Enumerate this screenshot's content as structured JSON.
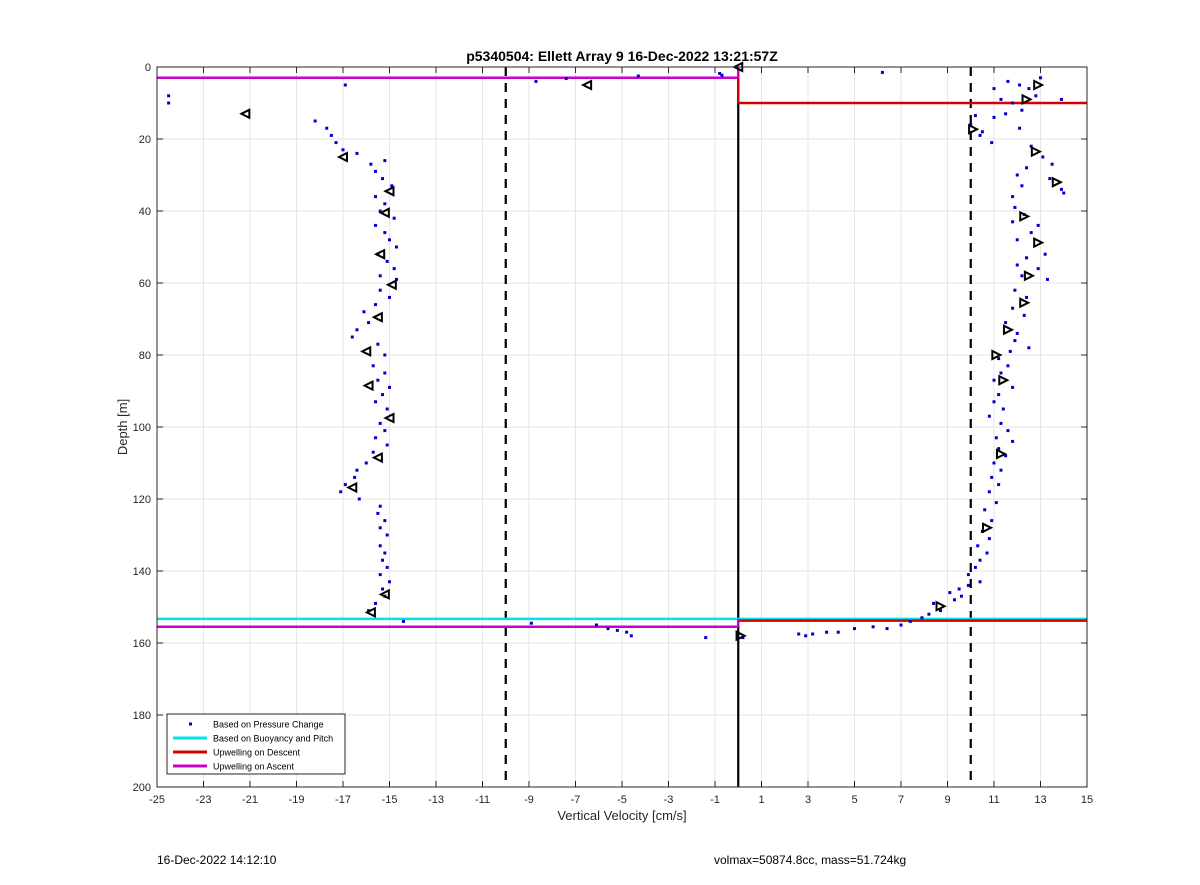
{
  "footer": {
    "timestamp": "16-Dec-2022 14:12:10",
    "volmax_mass": "volmax=50874.8cc, mass=51.724kg"
  },
  "colors": {
    "pressure": "#0000cc",
    "buoyancy": "#00e5e5",
    "descent": "#d40000",
    "ascent": "#cc00cc",
    "grid": "#e6e6e6"
  },
  "chart_data": {
    "type": "scatter",
    "title": "p5340504: Ellett Array 9 16-Dec-2022 13:21:57Z",
    "xlabel": "Vertical Velocity [cm/s]",
    "ylabel": "Depth [m]",
    "xlim": [
      -25,
      15
    ],
    "ylim": [
      0,
      200
    ],
    "y_reversed": true,
    "xticks": [
      -25,
      -23,
      -21,
      -19,
      -17,
      -15,
      -13,
      -11,
      -9,
      -7,
      -5,
      -3,
      -1,
      1,
      3,
      5,
      7,
      9,
      11,
      13,
      15
    ],
    "yticks": [
      0,
      20,
      40,
      60,
      80,
      100,
      120,
      140,
      160,
      180,
      200
    ],
    "grid": true,
    "legend_position": "bottom-left",
    "legend": [
      {
        "label": "Based on Pressure Change",
        "marker": "point",
        "color": "#0000cc"
      },
      {
        "label": "Based on Buoyancy and Pitch",
        "marker": "line",
        "color": "#00e5e5"
      },
      {
        "label": "Upwelling on Descent",
        "marker": "line",
        "color": "#d40000"
      },
      {
        "label": "Upwelling on Ascent",
        "marker": "line",
        "color": "#cc00cc"
      }
    ],
    "reference_lines": [
      {
        "kind": "vertical",
        "x": 0,
        "style": "solid"
      },
      {
        "kind": "vertical",
        "x": -10,
        "style": "dashed"
      },
      {
        "kind": "vertical",
        "x": 10,
        "style": "dashed"
      }
    ],
    "pressure_points": [
      [
        -24.5,
        8
      ],
      [
        -24.5,
        10
      ],
      [
        -16.9,
        5
      ],
      [
        -18.2,
        15
      ],
      [
        -17.7,
        17
      ],
      [
        -17.5,
        19
      ],
      [
        -17.3,
        21
      ],
      [
        -17.0,
        23
      ],
      [
        -16.4,
        24
      ],
      [
        -15.8,
        27
      ],
      [
        -15.2,
        26
      ],
      [
        -15.6,
        29
      ],
      [
        -15.3,
        31
      ],
      [
        -14.9,
        33
      ],
      [
        -15.6,
        36
      ],
      [
        -15.2,
        38
      ],
      [
        -15.4,
        40
      ],
      [
        -14.8,
        42
      ],
      [
        -15.6,
        44
      ],
      [
        -15.2,
        46
      ],
      [
        -15.0,
        48
      ],
      [
        -14.7,
        50
      ],
      [
        -15.5,
        52
      ],
      [
        -15.1,
        54
      ],
      [
        -14.8,
        56
      ],
      [
        -15.4,
        58
      ],
      [
        -14.7,
        59
      ],
      [
        -15.4,
        62
      ],
      [
        -15.0,
        64
      ],
      [
        -15.6,
        66
      ],
      [
        -16.1,
        68
      ],
      [
        -15.9,
        71
      ],
      [
        -16.4,
        73
      ],
      [
        -16.6,
        75
      ],
      [
        -15.5,
        77
      ],
      [
        -15.2,
        80
      ],
      [
        -15.7,
        83
      ],
      [
        -15.2,
        85
      ],
      [
        -15.5,
        87
      ],
      [
        -15.0,
        89
      ],
      [
        -15.3,
        91
      ],
      [
        -15.6,
        93
      ],
      [
        -15.1,
        95
      ],
      [
        -15.4,
        99
      ],
      [
        -15.2,
        101
      ],
      [
        -15.6,
        103
      ],
      [
        -15.1,
        105
      ],
      [
        -15.7,
        107
      ],
      [
        -16.0,
        110
      ],
      [
        -16.4,
        112
      ],
      [
        -16.5,
        114
      ],
      [
        -16.9,
        116
      ],
      [
        -17.1,
        118
      ],
      [
        -16.3,
        120
      ],
      [
        -15.4,
        122
      ],
      [
        -15.5,
        124
      ],
      [
        -15.2,
        126
      ],
      [
        -15.4,
        128
      ],
      [
        -15.1,
        130
      ],
      [
        -15.4,
        133
      ],
      [
        -15.2,
        135
      ],
      [
        -15.3,
        137
      ],
      [
        -15.1,
        139
      ],
      [
        -15.4,
        141
      ],
      [
        -15.0,
        143
      ],
      [
        -15.3,
        145
      ],
      [
        -15.2,
        147
      ],
      [
        -15.6,
        149
      ],
      [
        -15.9,
        151
      ],
      [
        -14.4,
        154
      ],
      [
        -8.9,
        154.5
      ],
      [
        -6.1,
        155
      ],
      [
        -5.6,
        156
      ],
      [
        -5.2,
        156.5
      ],
      [
        -4.8,
        157
      ],
      [
        -4.6,
        158
      ],
      [
        -1.4,
        158.5
      ],
      [
        -8.7,
        4
      ],
      [
        -7.4,
        3.2
      ],
      [
        -4.3,
        2.5
      ],
      [
        -0.8,
        1.8
      ],
      [
        -0.7,
        2.3
      ],
      [
        6.2,
        1.5
      ],
      [
        11.6,
        4
      ],
      [
        12.1,
        5
      ],
      [
        12.5,
        6
      ],
      [
        13.0,
        3
      ],
      [
        12.8,
        8
      ],
      [
        13.9,
        9
      ],
      [
        11.0,
        6
      ],
      [
        11.3,
        9
      ],
      [
        11.8,
        10
      ],
      [
        12.2,
        12
      ],
      [
        11.5,
        13
      ],
      [
        11.0,
        14
      ],
      [
        10.2,
        13.5
      ],
      [
        10.0,
        16
      ],
      [
        10.5,
        18
      ],
      [
        10.9,
        21
      ],
      [
        10.4,
        19
      ],
      [
        12.1,
        17
      ],
      [
        12.6,
        22
      ],
      [
        13.1,
        25
      ],
      [
        13.5,
        27
      ],
      [
        12.4,
        28
      ],
      [
        12.0,
        30
      ],
      [
        13.4,
        31
      ],
      [
        13.9,
        34
      ],
      [
        14.0,
        35
      ],
      [
        12.2,
        33
      ],
      [
        11.8,
        36
      ],
      [
        11.9,
        39
      ],
      [
        12.3,
        41
      ],
      [
        11.8,
        43
      ],
      [
        12.9,
        44
      ],
      [
        12.6,
        46
      ],
      [
        12.0,
        48
      ],
      [
        13.2,
        52
      ],
      [
        12.4,
        53
      ],
      [
        12.0,
        55
      ],
      [
        12.9,
        56
      ],
      [
        12.2,
        58
      ],
      [
        13.3,
        59
      ],
      [
        11.9,
        62
      ],
      [
        12.4,
        64
      ],
      [
        11.8,
        67
      ],
      [
        12.3,
        69
      ],
      [
        11.5,
        71
      ],
      [
        12.0,
        74
      ],
      [
        11.9,
        76
      ],
      [
        12.5,
        78
      ],
      [
        11.7,
        79
      ],
      [
        11.2,
        81
      ],
      [
        11.6,
        83
      ],
      [
        11.3,
        85
      ],
      [
        11.0,
        87
      ],
      [
        11.8,
        89
      ],
      [
        11.2,
        91
      ],
      [
        11.0,
        93
      ],
      [
        11.4,
        95
      ],
      [
        10.8,
        97
      ],
      [
        11.3,
        99
      ],
      [
        11.6,
        101
      ],
      [
        11.1,
        103
      ],
      [
        11.8,
        104
      ],
      [
        11.2,
        106
      ],
      [
        11.5,
        108
      ],
      [
        11.0,
        110
      ],
      [
        11.3,
        112
      ],
      [
        10.9,
        114
      ],
      [
        11.2,
        116
      ],
      [
        10.8,
        118
      ],
      [
        11.1,
        121
      ],
      [
        10.6,
        123
      ],
      [
        10.9,
        126
      ],
      [
        10.5,
        129
      ],
      [
        10.8,
        131
      ],
      [
        10.3,
        133
      ],
      [
        10.7,
        135
      ],
      [
        10.4,
        137
      ],
      [
        10.2,
        139
      ],
      [
        9.9,
        141
      ],
      [
        10.4,
        143
      ],
      [
        9.9,
        144
      ],
      [
        9.5,
        145
      ],
      [
        9.1,
        146
      ],
      [
        9.6,
        147
      ],
      [
        9.3,
        148
      ],
      [
        8.4,
        149
      ],
      [
        8.7,
        151
      ],
      [
        8.2,
        152
      ],
      [
        7.9,
        153
      ],
      [
        7.4,
        154
      ],
      [
        7.0,
        155
      ],
      [
        6.4,
        156
      ],
      [
        5.8,
        155.5
      ],
      [
        5.0,
        156
      ],
      [
        4.3,
        157
      ],
      [
        3.8,
        157
      ],
      [
        3.2,
        157.5
      ],
      [
        2.9,
        158
      ],
      [
        2.6,
        157.5
      ],
      [
        0.2,
        158.5
      ]
    ],
    "ascent_markers": [
      [
        -21.2,
        13
      ],
      [
        -17.0,
        25
      ],
      [
        -15.0,
        34.5
      ],
      [
        -15.2,
        40.5
      ],
      [
        -15.4,
        52
      ],
      [
        -14.9,
        60.5
      ],
      [
        -15.5,
        69.5
      ],
      [
        -16.0,
        79
      ],
      [
        -15.9,
        88.5
      ],
      [
        -15.0,
        97.5
      ],
      [
        -15.5,
        108.5
      ],
      [
        -16.6,
        116.8
      ],
      [
        -15.2,
        146.5
      ],
      [
        -15.8,
        151.5
      ],
      [
        -6.5,
        5
      ],
      [
        0,
        0
      ]
    ],
    "descent_markers": [
      [
        12.9,
        5
      ],
      [
        12.4,
        9
      ],
      [
        10.1,
        17.3
      ],
      [
        12.8,
        23.5
      ],
      [
        13.7,
        32
      ],
      [
        12.3,
        41.5
      ],
      [
        12.9,
        48.8
      ],
      [
        12.5,
        58
      ],
      [
        12.3,
        65.5
      ],
      [
        11.6,
        73
      ],
      [
        11.1,
        80
      ],
      [
        11.4,
        87
      ],
      [
        11.3,
        107.5
      ],
      [
        10.7,
        128
      ],
      [
        8.7,
        149.8
      ],
      [
        0.1,
        158
      ]
    ],
    "upwelling_lines": [
      {
        "series": "Upwelling on Ascent",
        "depth": 3,
        "x_from": -25,
        "x_to": 0
      },
      {
        "series": "Upwelling on Descent",
        "depth": 10,
        "x_from": 0,
        "x_to": 15
      },
      {
        "series": "Based on Buoyancy and Pitch",
        "depth": 153.3,
        "x_from": -25,
        "x_to": 15
      },
      {
        "series": "Upwelling on Descent",
        "depth": 153.8,
        "x_from": 0,
        "x_to": 15
      },
      {
        "series": "Upwelling on Ascent",
        "depth": 155.5,
        "x_from": -25,
        "x_to": 0
      }
    ],
    "step_segments": [
      {
        "series": "Upwelling on Ascent",
        "x": 0,
        "depth_from": 0,
        "depth_to": 10
      },
      {
        "series": "Upwelling on Descent",
        "x": 0,
        "depth_from": 3,
        "depth_to": 10
      },
      {
        "series": "Upwelling on Ascent",
        "x": 0,
        "depth_from": 153.3,
        "depth_to": 155.5
      }
    ]
  }
}
